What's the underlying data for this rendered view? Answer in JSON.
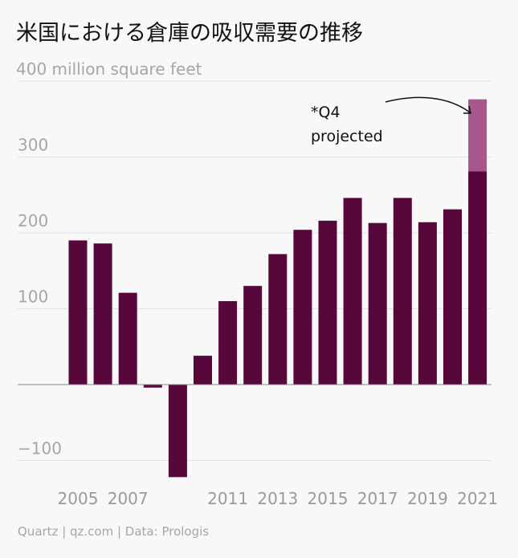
{
  "chart_data": {
    "type": "bar",
    "title": "米国における倉庫の吸収需要の推移",
    "unit_label": "400 million square feet",
    "categories": [
      "2005",
      "2006",
      "2007",
      "2008",
      "2009",
      "2010",
      "2011",
      "2012",
      "2013",
      "2014",
      "2015",
      "2016",
      "2017",
      "2018",
      "2019",
      "2020",
      "2021"
    ],
    "x_tick_labels": [
      "2005",
      "2007",
      "2011",
      "2013",
      "2015",
      "2017",
      "2019",
      "2021"
    ],
    "series": [
      {
        "color": "#58073a",
        "values": [
          190,
          186,
          121,
          -4,
          -122,
          38,
          110,
          130,
          172,
          204,
          216,
          246,
          213,
          246,
          214,
          231,
          281
        ]
      },
      {
        "name": "*Q4 projected",
        "color": "#a6588a",
        "values": [
          0,
          0,
          0,
          0,
          0,
          0,
          0,
          0,
          0,
          0,
          0,
          0,
          0,
          0,
          0,
          0,
          95
        ]
      }
    ],
    "y_ticks": [
      {
        "value": 300,
        "label": "300"
      },
      {
        "value": 200,
        "label": "200"
      },
      {
        "value": 100,
        "label": "100"
      },
      {
        "value": -100,
        "label": "−100"
      }
    ],
    "ylim": [
      -125,
      400
    ],
    "grid": true,
    "annotation": {
      "line1": "*Q4",
      "line2": "projected",
      "year": "2021"
    }
  },
  "source": "Quartz | qz.com | Data: Prologis"
}
